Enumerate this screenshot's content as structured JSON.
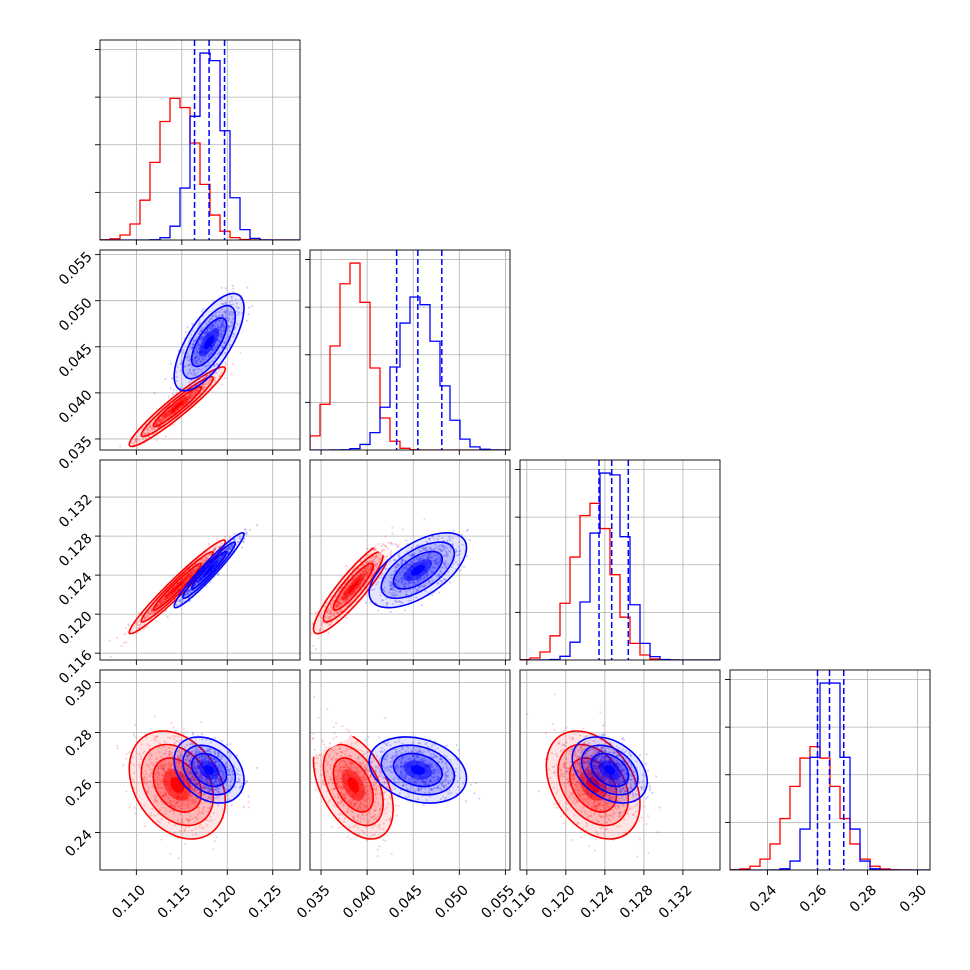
{
  "chart_data": {
    "type": "corner",
    "parameters": [
      {
        "range": [
          0.106,
          0.128
        ],
        "ticks": [
          0.11,
          0.115,
          0.12,
          0.125
        ],
        "tick_labels": [
          "0.110",
          "0.115",
          "0.120",
          "0.125"
        ]
      },
      {
        "range": [
          0.0338,
          0.0555
        ],
        "ticks": [
          0.035,
          0.04,
          0.045,
          0.05,
          0.055
        ],
        "tick_labels": [
          "0.035",
          "0.040",
          "0.045",
          "0.050",
          "0.055"
        ]
      },
      {
        "range": [
          0.1153,
          0.1358
        ],
        "ticks": [
          0.116,
          0.12,
          0.124,
          0.128,
          0.132
        ],
        "tick_labels": [
          "0.116",
          "0.120",
          "0.124",
          "0.128",
          "0.132"
        ]
      },
      {
        "range": [
          0.225,
          0.305
        ],
        "ticks": [
          0.24,
          0.26,
          0.28,
          0.3
        ],
        "tick_labels": [
          "0.24",
          "0.26",
          "0.28",
          "0.30"
        ]
      }
    ],
    "grid": true,
    "series": [
      {
        "color": "#ff0000",
        "means": [
          0.1145,
          0.0385,
          0.1228,
          0.259
        ],
        "sigmas": [
          0.0022,
          0.0018,
          0.002,
          0.009
        ],
        "correlations": [
          [
            0,
            1,
            0.95
          ],
          [
            0,
            2,
            0.97
          ],
          [
            1,
            2,
            0.9
          ],
          [
            0,
            3,
            -0.3
          ],
          [
            1,
            3,
            -0.45
          ],
          [
            2,
            3,
            -0.35
          ]
        ],
        "quantiles": null
      },
      {
        "color": "#0000ff",
        "means": [
          0.118,
          0.0455,
          0.1245,
          0.265
        ],
        "sigmas": [
          0.0016,
          0.0022,
          0.0016,
          0.0055
        ],
        "correlations": [
          [
            0,
            1,
            0.7
          ],
          [
            0,
            2,
            0.96
          ],
          [
            1,
            2,
            0.6
          ],
          [
            0,
            3,
            -0.3
          ],
          [
            1,
            3,
            -0.25
          ],
          [
            2,
            3,
            -0.35
          ]
        ],
        "quantiles": [
          [
            0.1164,
            0.118,
            0.1197
          ],
          [
            0.0432,
            0.0455,
            0.0481
          ],
          [
            0.1234,
            0.1247,
            0.1264
          ],
          [
            0.26,
            0.2648,
            0.2705
          ]
        ]
      }
    ]
  }
}
